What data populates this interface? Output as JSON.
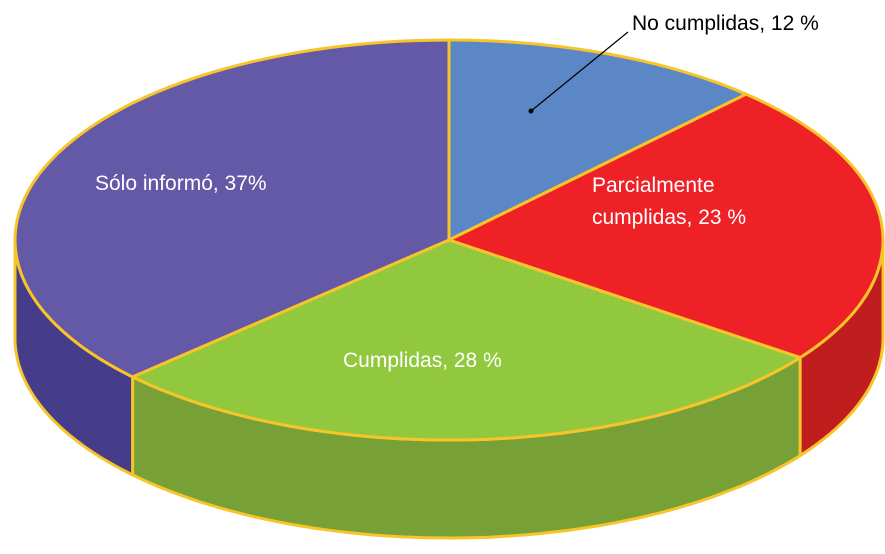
{
  "chart_data": {
    "type": "pie3d",
    "values": [
      12,
      23,
      28,
      37
    ],
    "value_labels": [
      "No cumplidas, 12 %",
      "Parcialmente cumplidas, 23 %",
      "Cumplidas, 28 %",
      "Sólo informó, 37%"
    ],
    "colors": [
      "#5b87c7",
      "#ee2226",
      "#92c83e",
      "#6459a6"
    ],
    "side_colors": [
      "#3f679f",
      "#c01d1f",
      "#77a136",
      "#453c8a"
    ],
    "edge_color": "#f7c42a"
  }
}
